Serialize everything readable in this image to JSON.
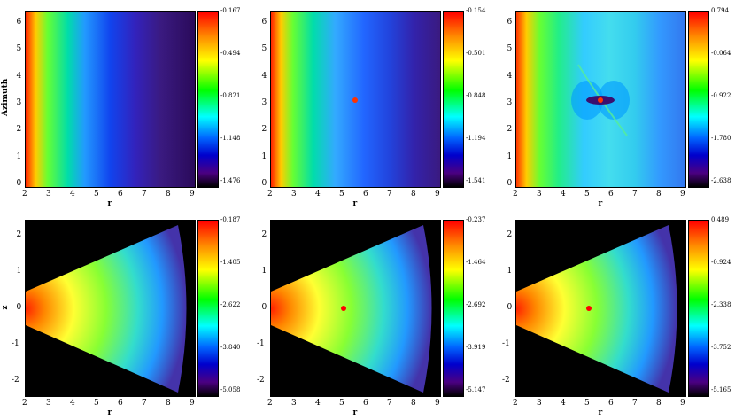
{
  "panels": [
    {
      "xlabel": "r",
      "ylabel": "Azimuth",
      "xticks": [
        "2",
        "3",
        "4",
        "5",
        "6",
        "7",
        "8",
        "9"
      ],
      "yticks": [
        "6",
        "5",
        "4",
        "3",
        "2",
        "1",
        "0"
      ],
      "cbar": [
        "-0.167",
        "-0.494",
        "-0.821",
        "-1.148",
        "-1.476"
      ],
      "type": "azimuth",
      "planet": false
    },
    {
      "xlabel": "r",
      "ylabel": "",
      "xticks": [
        "2",
        "3",
        "4",
        "5",
        "6",
        "7",
        "8",
        "9"
      ],
      "yticks": [
        "6",
        "5",
        "4",
        "3",
        "2",
        "1",
        "0"
      ],
      "cbar": [
        "-0.154",
        "-0.501",
        "-0.848",
        "-1.194",
        "-1.541"
      ],
      "type": "azimuth",
      "planet": true
    },
    {
      "xlabel": "r",
      "ylabel": "",
      "xticks": [
        "2",
        "3",
        "4",
        "5",
        "6",
        "7",
        "8",
        "9"
      ],
      "yticks": [
        "6",
        "5",
        "4",
        "3",
        "2",
        "1",
        "0"
      ],
      "cbar": [
        "0.794",
        "-0.064",
        "-0.922",
        "-1.780",
        "-2.638"
      ],
      "type": "azimuth",
      "planet": true,
      "gap": true
    },
    {
      "xlabel": "r",
      "ylabel": "z",
      "xticks": [
        "2",
        "3",
        "4",
        "5",
        "6",
        "7",
        "8",
        "9"
      ],
      "yticks": [
        "2",
        "1",
        "0",
        "-1",
        "-2"
      ],
      "cbar": [
        "-0.187",
        "-1.405",
        "-2.622",
        "-3.840",
        "-5.058"
      ],
      "type": "wedge",
      "planet": false
    },
    {
      "xlabel": "r",
      "ylabel": "",
      "xticks": [
        "2",
        "3",
        "4",
        "5",
        "6",
        "7",
        "8",
        "9"
      ],
      "yticks": [
        "2",
        "1",
        "0",
        "-1",
        "-2"
      ],
      "cbar": [
        "-0.237",
        "-1.464",
        "-2.692",
        "-3.919",
        "-5.147"
      ],
      "type": "wedge",
      "planet": true
    },
    {
      "xlabel": "r",
      "ylabel": "",
      "xticks": [
        "2",
        "3",
        "4",
        "5",
        "6",
        "7",
        "8",
        "9"
      ],
      "yticks": [
        "2",
        "1",
        "0",
        "-1",
        "-2"
      ],
      "cbar": [
        "0.489",
        "-0.924",
        "-2.338",
        "-3.752",
        "-5.165"
      ],
      "type": "wedge",
      "planet": true,
      "gap": true
    }
  ]
}
